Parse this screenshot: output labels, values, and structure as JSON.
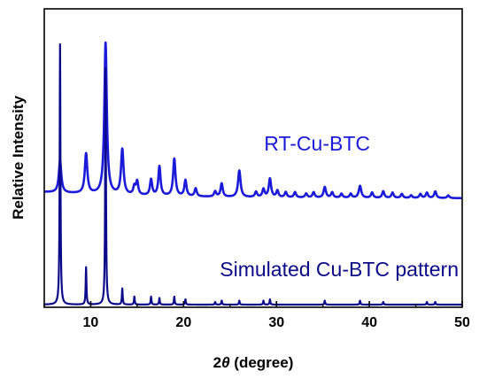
{
  "chart_data": {
    "type": "line",
    "xlabel_prefix": "2",
    "xlabel_symbol": "θ",
    "xlabel_suffix": " (degree)",
    "ylabel": "Relative Intensity",
    "xlim": [
      5,
      50
    ],
    "ylim": [
      0,
      1
    ],
    "grid": false,
    "x_ticks": [
      10,
      20,
      30,
      40,
      50
    ],
    "x_tick_labels": [
      "10",
      "20",
      "30",
      "40",
      "50"
    ],
    "baseline_width": 0.08,
    "series": [
      {
        "name": "RT-Cu-BTC",
        "color": "#1a1adb",
        "baseline": 0.4,
        "peaks": [
          [
            6.7,
            0.12,
            0.16
          ],
          [
            9.5,
            0.15,
            0.16
          ],
          [
            11.6,
            0.57,
            0.16
          ],
          [
            13.4,
            0.17,
            0.16
          ],
          [
            14.7,
            0.03,
            0.14
          ],
          [
            15.0,
            0.05,
            0.14
          ],
          [
            16.5,
            0.06,
            0.14
          ],
          [
            17.4,
            0.11,
            0.14
          ],
          [
            19.0,
            0.14,
            0.15
          ],
          [
            20.2,
            0.06,
            0.14
          ],
          [
            21.3,
            0.03,
            0.14
          ],
          [
            23.4,
            0.02,
            0.14
          ],
          [
            24.1,
            0.05,
            0.14
          ],
          [
            26.0,
            0.1,
            0.16
          ],
          [
            27.8,
            0.02,
            0.14
          ],
          [
            28.6,
            0.03,
            0.14
          ],
          [
            29.3,
            0.07,
            0.15
          ],
          [
            30.1,
            0.025,
            0.14
          ],
          [
            31.0,
            0.02,
            0.14
          ],
          [
            32.0,
            0.02,
            0.14
          ],
          [
            33.2,
            0.015,
            0.14
          ],
          [
            34.0,
            0.02,
            0.14
          ],
          [
            35.2,
            0.04,
            0.15
          ],
          [
            36.0,
            0.02,
            0.14
          ],
          [
            37.0,
            0.015,
            0.14
          ],
          [
            38.0,
            0.015,
            0.14
          ],
          [
            39.0,
            0.045,
            0.16
          ],
          [
            40.3,
            0.02,
            0.14
          ],
          [
            41.5,
            0.025,
            0.14
          ],
          [
            42.5,
            0.02,
            0.14
          ],
          [
            43.5,
            0.015,
            0.14
          ],
          [
            44.5,
            0.01,
            0.14
          ],
          [
            45.5,
            0.015,
            0.14
          ],
          [
            46.2,
            0.02,
            0.14
          ],
          [
            47.1,
            0.025,
            0.14
          ],
          [
            48.5,
            0.01,
            0.14
          ]
        ]
      },
      {
        "name": "Simulated Cu-BTC pattern",
        "color": "#0a0a8a",
        "baseline": 0.0,
        "peaks": [
          [
            6.7,
            0.98,
            0.05
          ],
          [
            9.5,
            0.14,
            0.05
          ],
          [
            11.6,
            0.89,
            0.05
          ],
          [
            13.4,
            0.06,
            0.05
          ],
          [
            14.7,
            0.03,
            0.05
          ],
          [
            16.5,
            0.03,
            0.05
          ],
          [
            17.4,
            0.025,
            0.05
          ],
          [
            19.0,
            0.03,
            0.05
          ],
          [
            20.2,
            0.02,
            0.05
          ],
          [
            23.4,
            0.01,
            0.05
          ],
          [
            24.1,
            0.015,
            0.05
          ],
          [
            26.0,
            0.015,
            0.05
          ],
          [
            28.6,
            0.015,
            0.05
          ],
          [
            29.3,
            0.02,
            0.05
          ],
          [
            35.2,
            0.015,
            0.05
          ],
          [
            39.0,
            0.015,
            0.05
          ],
          [
            41.5,
            0.01,
            0.05
          ],
          [
            46.2,
            0.01,
            0.05
          ],
          [
            47.1,
            0.01,
            0.05
          ]
        ]
      }
    ]
  }
}
